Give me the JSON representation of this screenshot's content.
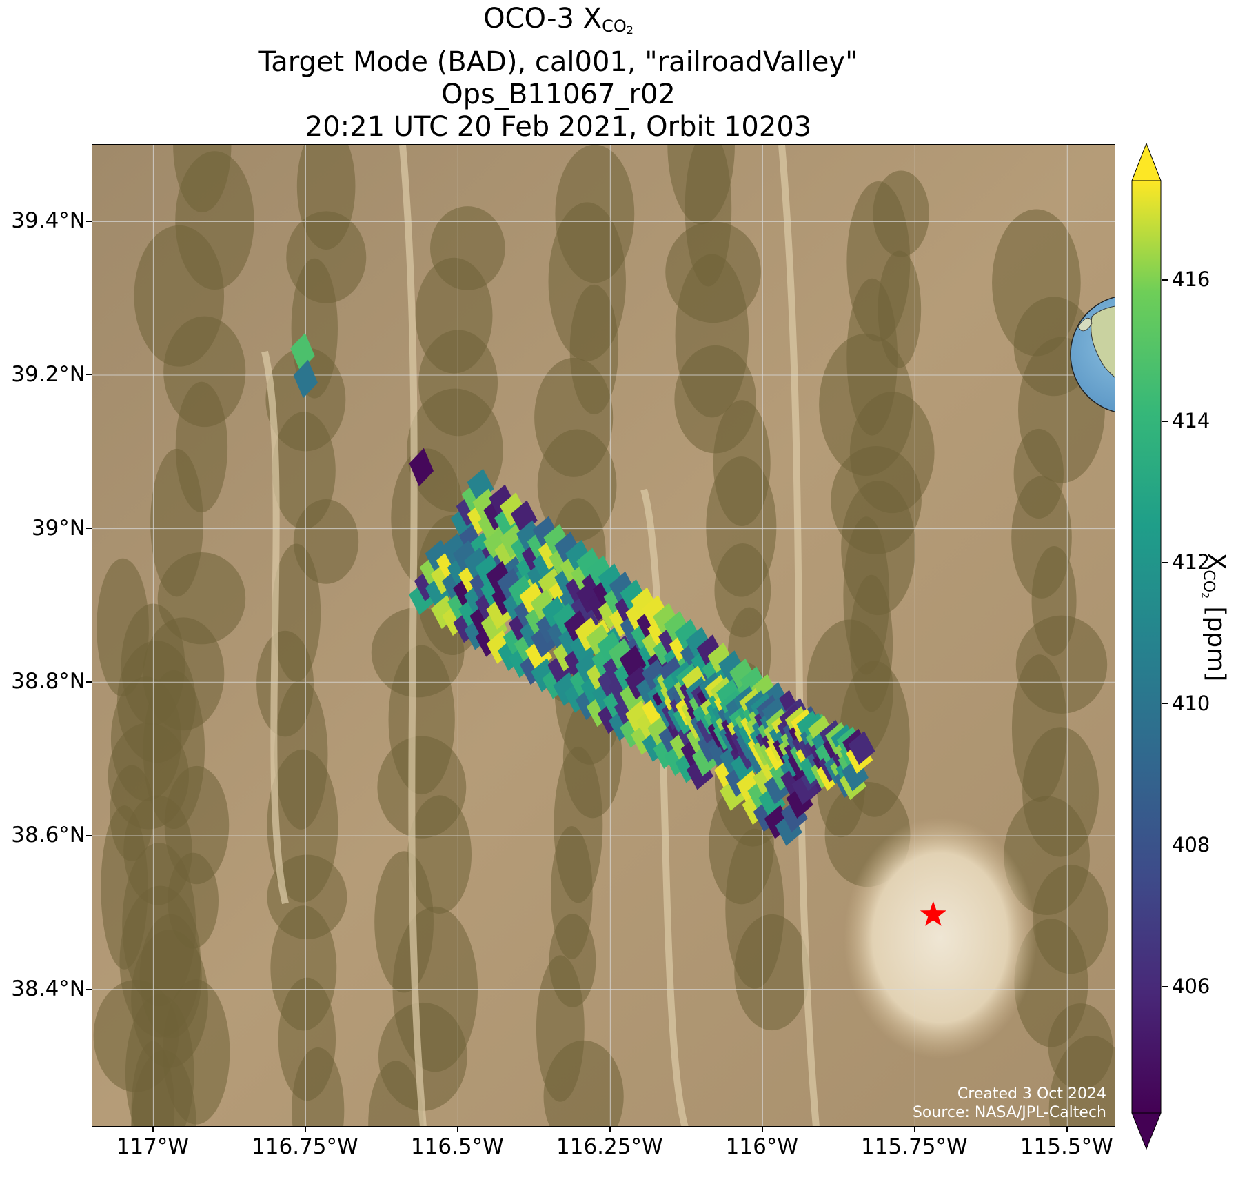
{
  "title": {
    "line1_prefix": "OCO-3 X",
    "line1_sub": "CO",
    "line1_sub2": "2",
    "line2": "Target Mode (BAD), cal001, \"railroadValley\"",
    "line3": "Ops_B11067_r02",
    "line4": "20:21 UTC 20 Feb 2021, Orbit 10203"
  },
  "chart_data": {
    "type": "heatmap",
    "xlim": [
      -117.1,
      -115.42
    ],
    "ylim": [
      38.22,
      39.5
    ],
    "x_ticks": [
      -117.0,
      -116.75,
      -116.5,
      -116.25,
      -116.0,
      -115.75,
      -115.5
    ],
    "x_tick_labels": [
      "117°W",
      "116.75°W",
      "116.5°W",
      "116.25°W",
      "116°W",
      "115.75°W",
      "115.5°W"
    ],
    "y_ticks": [
      38.4,
      38.6,
      38.8,
      39.0,
      39.2,
      39.4
    ],
    "y_tick_labels": [
      "38.4°N",
      "38.6°N",
      "38.8°N",
      "39°N",
      "39.2°N",
      "39.4°N"
    ],
    "grid": true,
    "colorbar": {
      "label_prefix": "X",
      "label_sub": "CO",
      "label_sub2": "2",
      "label_suffix": " [ppm]",
      "range": [
        404.2,
        417.4
      ],
      "ticks": [
        406,
        408,
        410,
        412,
        414,
        416
      ],
      "extend": "both",
      "colormap": "viridis"
    },
    "target_marker": {
      "lon": -115.72,
      "lat": 38.497,
      "symbol": "star",
      "color": "#ff0000"
    },
    "soundings_note_lon_lat_values": [
      {
        "lon": -116.755,
        "lat": 39.23,
        "value": 414.8
      },
      {
        "lon": -116.75,
        "lat": 39.195,
        "value": 410.0
      },
      {
        "lon": -116.56,
        "lat": 39.08,
        "value": 404.5
      }
    ],
    "swath_strips": [
      {
        "from": [
          -116.49,
          39.03
        ],
        "to": [
          -115.88,
          38.68
        ],
        "half_width_deg": 0.045
      },
      {
        "from": [
          -116.55,
          38.95
        ],
        "to": [
          -115.93,
          38.64
        ],
        "half_width_deg": 0.05
      },
      {
        "from": [
          -116.16,
          38.79
        ],
        "to": [
          -115.84,
          38.69
        ],
        "half_width_deg": 0.03
      }
    ]
  },
  "credit": {
    "line1": "Created 3 Oct 2024",
    "line2": "Source: NASA/JPL-Caltech"
  },
  "colors": {
    "star": "#ff0000",
    "grid": "#d9d9d9",
    "ocean": "#6ea8d2",
    "land": "#c9d2a0"
  }
}
